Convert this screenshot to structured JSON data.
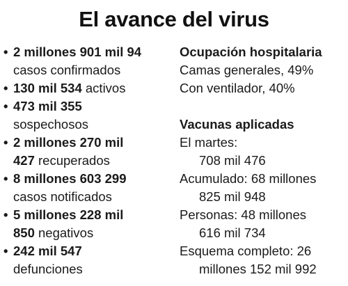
{
  "title": "El avance del virus",
  "left_items": [
    {
      "l1_bold": "2 millones 901 mil 94",
      "l1_rest": "",
      "l2_bold": "",
      "l2_rest": "casos confirmados"
    },
    {
      "l1_bold": "130 mil 534",
      "l1_rest": " activos",
      "l2_bold": "",
      "l2_rest": ""
    },
    {
      "l1_bold": "473 mil 355",
      "l1_rest": "",
      "l2_bold": "",
      "l2_rest": "sospechosos"
    },
    {
      "l1_bold": "2 millones 270 mil",
      "l1_rest": "",
      "l2_bold": "427",
      "l2_rest": " recuperados"
    },
    {
      "l1_bold": "8 millones 603 299",
      "l1_rest": "",
      "l2_bold": "",
      "l2_rest": "casos notificados"
    },
    {
      "l1_bold": "5 millones 228 mil",
      "l1_rest": "",
      "l2_bold": "850",
      "l2_rest": " negativos"
    },
    {
      "l1_bold": "242 mil 547",
      "l1_rest": "",
      "l2_bold": "",
      "l2_rest": "defunciones"
    }
  ],
  "hospital": {
    "heading": "Ocupación hospitalaria",
    "general": "Camas generales, 49%",
    "ventilator": "Con ventilador, 40%"
  },
  "vaccines": {
    "heading": "Vacunas aplicadas",
    "tuesday_label": "El martes:",
    "tuesday_value": "708 mil 476",
    "accum_label": "Acumulado: 68 millones",
    "accum_value": "825 mil 948",
    "people_label": "Personas: 48 millones",
    "people_value": "616 mil 734",
    "complete_label": "Esquema completo: 26",
    "complete_value": "millones 152 mil 992"
  }
}
